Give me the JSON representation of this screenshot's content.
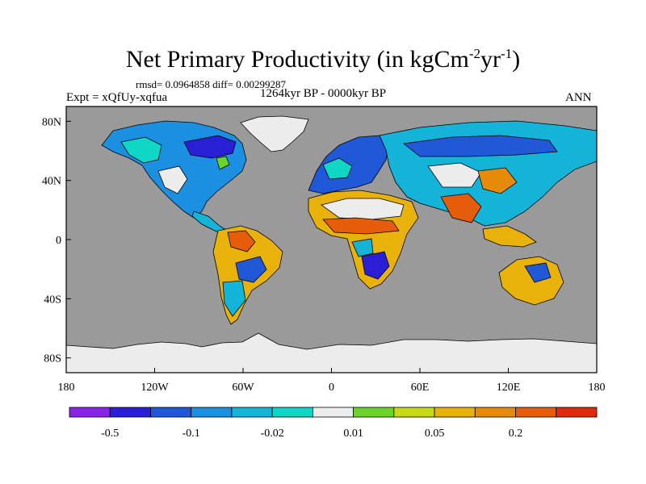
{
  "title": {
    "main": "Net Primary Productivity (in kgCm",
    "sup1": "-2",
    "mid": "yr",
    "sup2": "-1",
    "end": ")"
  },
  "stats": "rmsd= 0.0964858 diff= 0.00299287",
  "left_label": "Expt = xQfUy-xqfua",
  "center_label": "1264kyr BP - 0000kyr BP",
  "right_label": "ANN",
  "axes": {
    "x_ticks": [
      "180",
      "120W",
      "60W",
      "0",
      "60E",
      "120E",
      "180"
    ],
    "x_values": [
      -180,
      -120,
      -60,
      0,
      60,
      120,
      180
    ],
    "y_ticks": [
      "80N",
      "40N",
      "0",
      "40S",
      "80S"
    ],
    "y_values": [
      80,
      40,
      0,
      -40,
      -80
    ],
    "lon_range": [
      -180,
      180
    ],
    "lat_range": [
      -90,
      90
    ]
  },
  "colorbar": {
    "colors": [
      "#8b22e8",
      "#2a1fd6",
      "#2058d8",
      "#1c90e0",
      "#13b4d8",
      "#10d6c6",
      "#ececec",
      "#6ad42a",
      "#c6da17",
      "#e8b20a",
      "#e68a0a",
      "#e55c0b",
      "#dc2c0c"
    ],
    "labels": [
      "-0.5",
      "-0.1",
      "-0.02",
      "0.01",
      "0.05",
      "0.2"
    ],
    "label_boundaries": [
      1,
      3,
      5,
      7,
      9,
      11
    ]
  },
  "map_colors": {
    "ocean": "#9a9a9a",
    "ice": "#ececec"
  }
}
